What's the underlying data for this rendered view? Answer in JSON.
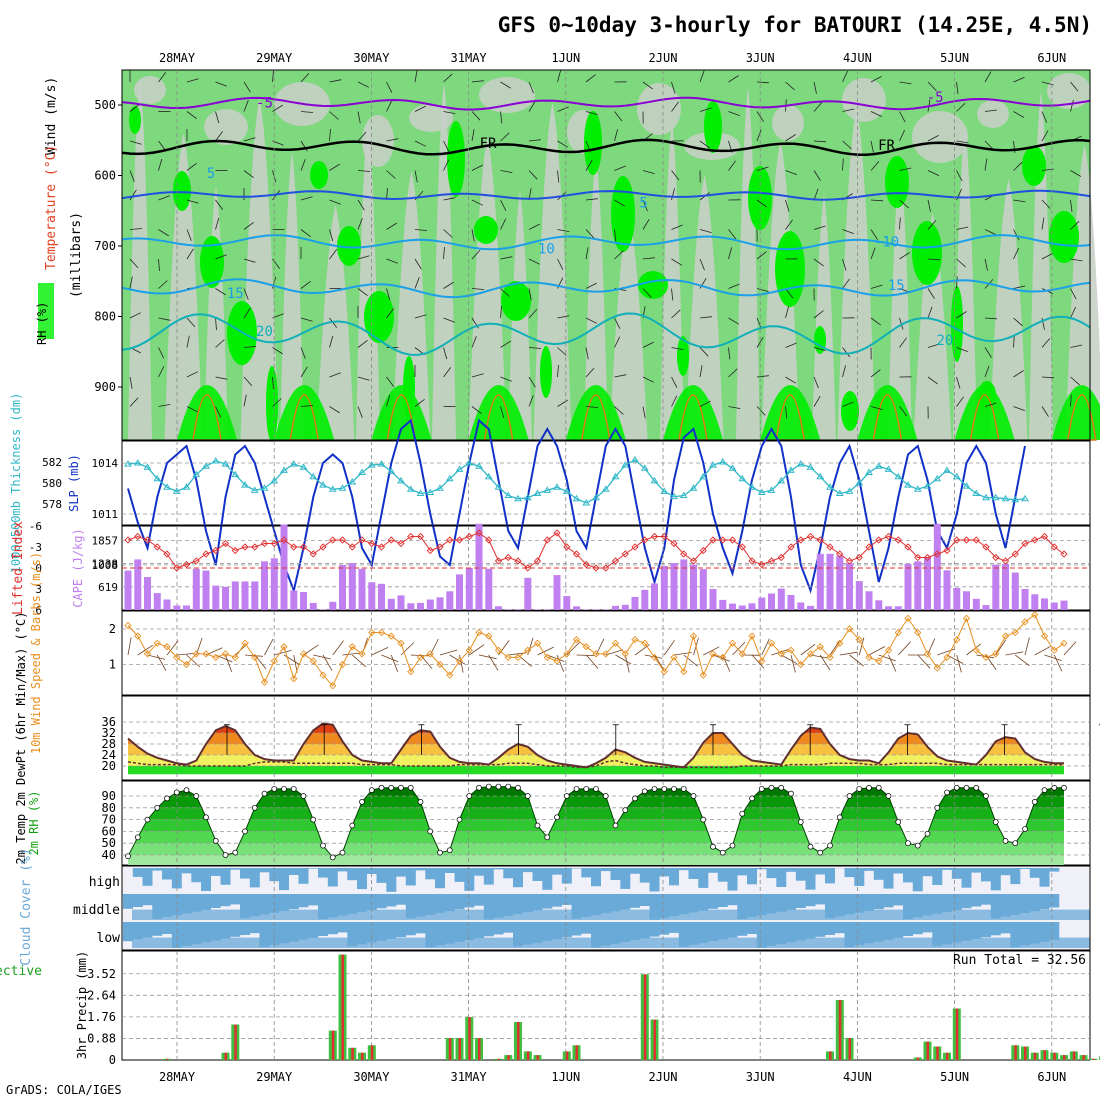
{
  "title": "GFS 0~10day 3-hourly for BATOURI (14.25E, 4.5N)",
  "footer": "GrADS: COLA/IGES",
  "date_labels": [
    "28MAY",
    "29MAY",
    "30MAY",
    "31MAY",
    "1JUN",
    "2JUN",
    "3JUN",
    "4JUN",
    "5JUN",
    "6JUN"
  ],
  "colors": {
    "rh_green_light": "#7ed87e",
    "rh_green_bright": "#00ee00",
    "rh_gray": "#c8d0c8",
    "wind_purple": "#8a00d4",
    "temp_blue": "#2050e0",
    "temp_lightblue": "#1aa0e8",
    "temp_teal": "#10b0b8",
    "slp_blue": "#1030c8",
    "thickness_cyan": "#30b8c8",
    "lifted_red": "#e03030",
    "cape_purple": "#c080f0",
    "wind10_orange": "#e89020",
    "temp_dark": "#603030",
    "cloud_blue": "#6aaad8",
    "precip_green": "#40c040",
    "precip_red": "#e03030"
  },
  "chart_data": [
    {
      "panel": "upper-air",
      "type": "heatmap",
      "ylabel_units": "(millibars)",
      "ylabel_parts": [
        "Wind (m/s)",
        "Temperature (°C)",
        "RH (%)"
      ],
      "y_ticks": [
        500,
        600,
        700,
        800,
        900
      ],
      "contour_labels": [
        {
          "text": "-5",
          "level_mb": 498,
          "day": 0.9
        },
        {
          "text": "-5",
          "level_mb": 490,
          "day": 7.8
        },
        {
          "text": "FR",
          "level_mb": 555,
          "day": 3.2
        },
        {
          "text": "FR",
          "level_mb": 558,
          "day": 7.3
        },
        {
          "text": "5",
          "level_mb": 598,
          "day": 0.35
        },
        {
          "text": "5",
          "level_mb": 640,
          "day": 4.8
        },
        {
          "text": "10",
          "level_mb": 705,
          "day": 3.8
        },
        {
          "text": "-10",
          "level_mb": 695,
          "day": 7.3
        },
        {
          "text": "15",
          "level_mb": 768,
          "day": 0.6
        },
        {
          "text": "15",
          "level_mb": 757,
          "day": 7.4
        },
        {
          "text": "20",
          "level_mb": 822,
          "day": 0.9
        },
        {
          "text": "20",
          "level_mb": 835,
          "day": 7.9
        }
      ]
    },
    {
      "panel": "slp-thickness",
      "type": "line",
      "ylabel_left": "1000~500mb Thickness (dm)",
      "ylabel_right": "SLP (mb)",
      "left_ticks": [
        582,
        580,
        578
      ],
      "right_ticks": [
        1014,
        1011,
        1008
      ],
      "series": [
        {
          "name": "SLP",
          "unit": "mb",
          "values": [
            1012.5,
            1010.5,
            1009,
            1012,
            1014,
            1014.5,
            1015,
            1013,
            1010,
            1008,
            1012,
            1014.5,
            1015,
            1014,
            1012,
            1010,
            1008,
            1006.5,
            1009,
            1012,
            1014,
            1014.5,
            1014,
            1012,
            1009,
            1008,
            1011,
            1014,
            1016,
            1016.5,
            1014,
            1011,
            1008.5,
            1008,
            1011,
            1014,
            1016.5,
            1016,
            1013,
            1010,
            1009,
            1012,
            1015,
            1016,
            1015,
            1013,
            1010,
            1009,
            1012,
            1015,
            1016,
            1015,
            1012,
            1009,
            1007,
            1009,
            1013,
            1015.5,
            1016,
            1014,
            1011,
            1009,
            1007.5,
            1010,
            1013,
            1015,
            1016,
            1015,
            1012,
            1008,
            1006.5,
            1009,
            1012,
            1014,
            1015,
            1013,
            1010,
            1007,
            1009,
            1012,
            1014.5,
            1015,
            1013,
            1010,
            1009,
            1011,
            1014,
            1015,
            1014,
            1011,
            1009,
            1012,
            1015
          ]
        },
        {
          "name": "Thickness",
          "unit": "dm",
          "values": [
            581.8,
            581.9,
            581.5,
            580.4,
            579.6,
            579.2,
            579.6,
            580.8,
            581.6,
            582.1,
            581.8,
            580.8,
            579.8,
            579.3,
            579.5,
            580.2,
            581.2,
            581.8,
            581.5,
            580.6,
            579.8,
            579.4,
            579.5,
            580.1,
            581,
            581.7,
            581.8,
            581.1,
            580.2,
            579.4,
            579,
            579.1,
            579.5,
            580.4,
            581.3,
            581.9,
            581.6,
            580.6,
            579.6,
            578.8,
            578.5,
            578.6,
            579,
            579.3,
            579.6,
            579.2,
            578.5,
            578.1,
            578.6,
            579.4,
            580.6,
            581.7,
            582.2,
            581.4,
            580.2,
            579.2,
            578.7,
            578.8,
            579.5,
            580.6,
            581.7,
            582,
            581.4,
            580.4,
            579.6,
            579.1,
            579.3,
            580.2,
            581.2,
            581.8,
            581.5,
            580.6,
            579.6,
            579,
            579.2,
            580,
            581,
            581.6,
            581.3,
            580.6,
            579.8,
            579.4,
            579.7,
            580.4,
            581.2,
            580.6,
            579.7,
            579,
            578.6,
            578.6,
            578.5,
            578.4,
            578.5
          ]
        }
      ]
    },
    {
      "panel": "cape-li",
      "type": "bar",
      "ylabel_left": "Lifted Index",
      "ylabel_right": "CAPE (J/kg)",
      "li_ticks": [
        -6,
        -3,
        0,
        3,
        6
      ],
      "cape_ticks": [
        619,
        1238,
        1857
      ],
      "series": [
        {
          "name": "CAPE",
          "unit": "J/kg",
          "values": [
            1050,
            1350,
            880,
            450,
            280,
            120,
            120,
            1100,
            1050,
            650,
            620,
            760,
            760,
            760,
            1300,
            1380,
            2280,
            520,
            480,
            190,
            15,
            220,
            1200,
            1250,
            1100,
            740,
            700,
            300,
            390,
            180,
            190,
            280,
            340,
            500,
            950,
            1120,
            2300,
            1100,
            100,
            15,
            20,
            860,
            15,
            20,
            930,
            370,
            100,
            15,
            15,
            15,
            110,
            140,
            350,
            540,
            710,
            1170,
            1250,
            1350,
            1210,
            1090,
            560,
            270,
            170,
            120,
            180,
            330,
            440,
            570,
            400,
            200,
            110,
            1500,
            1500,
            1450,
            1250,
            770,
            500,
            260,
            100,
            100,
            1230,
            1300,
            1400,
            2300,
            1060,
            590,
            500,
            300,
            130,
            1210,
            1230,
            1000,
            560,
            420,
            310,
            200,
            250
          ]
        },
        {
          "name": "Lifted Index",
          "unit": "K",
          "values": [
            -4,
            -4.5,
            -4,
            -3,
            -2,
            0,
            -0.5,
            -1,
            -2,
            -2.5,
            -3.5,
            -2.5,
            -3,
            -3,
            -3.5,
            -3.5,
            -4,
            -3,
            -3,
            -2,
            -3,
            -4,
            -4,
            -3,
            -4,
            -3.5,
            -3,
            -4,
            -3.5,
            -4.5,
            -4.5,
            -2.5,
            -3,
            -4,
            -4,
            -4.5,
            -5,
            -4,
            -1,
            -1.5,
            -1,
            0,
            -1,
            -4,
            -5,
            -3,
            -2,
            -0.5,
            0,
            0,
            -1,
            -2,
            -3,
            -4,
            -4.5,
            -4.5,
            -3.5,
            -2,
            -1,
            -2.5,
            -4,
            -4,
            -4,
            -3,
            -1,
            -0.5,
            -1,
            -1.5,
            -3,
            -4,
            -4.5,
            -4,
            -3,
            -2,
            -1,
            -1.5,
            -3,
            -4,
            -4.5,
            -4,
            -3,
            -1.5,
            -1.5,
            -2,
            -2.5,
            -4,
            -4,
            -4,
            -3,
            -1.5,
            -1,
            -2,
            -3.5,
            -4,
            -4.5,
            -3,
            -2
          ]
        }
      ]
    },
    {
      "panel": "wind10m",
      "type": "line",
      "ylabel": "10m Wind Speed & Barbs (m/s)",
      "y_ticks": [
        1,
        2
      ],
      "series": [
        {
          "name": "10m Wind Speed",
          "unit": "m/s",
          "values": [
            2.1,
            1.8,
            1.3,
            1.6,
            1.5,
            1.2,
            1.0,
            1.3,
            1.3,
            1.2,
            1.3,
            1.2,
            1.6,
            1.2,
            0.5,
            1.1,
            1.5,
            0.6,
            1.3,
            1.1,
            0.7,
            0.4,
            1.0,
            1.5,
            1.3,
            1.9,
            1.9,
            1.8,
            1.6,
            0.8,
            1.2,
            1.3,
            1.0,
            0.7,
            1.1,
            1.4,
            1.9,
            1.8,
            1.4,
            1.2,
            1.2,
            1.4,
            1.6,
            1.2,
            1.1,
            1.3,
            1.7,
            1.5,
            1.3,
            1.3,
            1.6,
            1.3,
            1.7,
            1.6,
            1.2,
            0.8,
            1.2,
            0.8,
            1.8,
            0.7,
            1.3,
            1.2,
            1.6,
            1.3,
            1.8,
            1.1,
            1.6,
            1.3,
            1.4,
            1.0,
            1.3,
            1.5,
            1.2,
            1.6,
            2.0,
            1.7,
            1.2,
            1.1,
            1.4,
            1.9,
            2.3,
            1.9,
            1.3,
            0.9,
            1.2,
            1.7,
            2.3,
            1.4,
            1.2,
            1.3,
            1.8,
            1.9,
            2.2,
            2.4,
            1.8,
            1.4,
            1.6
          ]
        }
      ]
    },
    {
      "panel": "temp2m",
      "type": "area",
      "ylabel": "2m Temp 2m DewPt (6hr Min/Max) (°C)",
      "y_ticks": [
        20,
        24,
        28,
        32,
        36
      ],
      "series": [
        {
          "name": "2m Temp",
          "unit": "°C",
          "values": [
            30,
            27,
            24.5,
            23,
            22,
            21,
            20.5,
            22,
            28,
            33,
            34.5,
            33,
            28,
            24,
            22.5,
            22,
            22,
            22,
            28,
            33,
            35.5,
            35,
            29,
            24,
            22,
            21.5,
            21,
            21,
            26,
            31,
            33,
            32.5,
            27,
            23,
            21.5,
            21,
            21,
            20.5,
            23,
            26,
            28,
            27,
            24,
            22,
            21,
            20.5,
            20,
            19.5,
            21,
            23,
            26,
            25,
            23,
            21.5,
            21,
            20.5,
            20,
            19.5,
            23,
            28.5,
            32,
            32,
            28,
            24,
            22,
            21.5,
            21,
            20.5,
            26,
            31,
            34,
            33.5,
            28,
            24,
            22.5,
            22,
            22,
            21,
            25,
            30,
            32,
            31.5,
            27,
            23.5,
            22,
            21.5,
            21,
            20.5,
            24,
            29,
            30.5,
            30,
            25,
            22.5,
            21.5,
            21,
            21
          ]
        },
        {
          "name": "2m DewPt",
          "unit": "°C",
          "values": [
            21.5,
            21,
            20.5,
            20.5,
            20.5,
            20.5,
            20,
            20,
            20,
            20,
            20,
            20,
            20,
            21,
            21.5,
            21.5,
            21.5,
            21,
            21,
            21,
            21,
            21,
            21,
            21,
            20.5,
            20.5,
            20.5,
            20.5,
            20,
            20,
            20,
            20,
            20,
            20,
            20.5,
            20.5,
            20.5,
            20.5,
            20.5,
            21,
            21,
            21,
            20.5,
            20,
            20,
            20,
            19.5,
            19.5,
            20,
            21.5,
            22,
            21,
            20.5,
            20,
            20,
            19.5,
            19.5,
            19.5,
            19.5,
            19.5,
            19.5,
            19.5,
            19.5,
            20,
            20,
            20,
            20,
            20,
            20.5,
            20.5,
            20.5,
            20.5,
            21,
            21,
            21,
            21,
            20.5,
            20.5,
            20.5,
            21,
            21,
            21,
            21,
            21,
            20.5,
            20.5,
            20.5,
            20.5,
            20.5,
            20.5,
            20.5,
            20.5,
            20.5,
            20.5,
            20.5,
            20.5,
            20.5
          ]
        }
      ]
    },
    {
      "panel": "rh2m",
      "type": "area",
      "ylabel": "2m RH (%)",
      "y_ticks": [
        40,
        50,
        60,
        70,
        80,
        90
      ],
      "series": [
        {
          "name": "2m RH",
          "unit": "%",
          "values": [
            39,
            55,
            70,
            80,
            88,
            93,
            95,
            90,
            72,
            52,
            40,
            42,
            60,
            80,
            92,
            96,
            96,
            96,
            90,
            70,
            48,
            38,
            42,
            65,
            85,
            95,
            97,
            97,
            97,
            97,
            85,
            60,
            42,
            44,
            70,
            90,
            97,
            98,
            98,
            98,
            97,
            90,
            65,
            55,
            72,
            90,
            96,
            96,
            96,
            90,
            65,
            78,
            88,
            94,
            96,
            96,
            96,
            96,
            90,
            70,
            47,
            42,
            48,
            75,
            88,
            96,
            97,
            97,
            92,
            68,
            47,
            42,
            48,
            72,
            90,
            96,
            97,
            97,
            90,
            68,
            50,
            48,
            58,
            80,
            93,
            97,
            97,
            97,
            90,
            68,
            52,
            50,
            62,
            85,
            95,
            97,
            97
          ]
        }
      ]
    },
    {
      "panel": "cloud",
      "type": "area",
      "ylabel": "Cloud Cover (%)",
      "layer_labels": [
        "high",
        "middle",
        "low"
      ]
    },
    {
      "panel": "precip",
      "type": "bar",
      "ylabel_left": "Total / Rain Convective",
      "ylabel": "3hr Precip (mm)",
      "y_ticks": [
        0,
        0.88,
        1.76,
        2.64,
        3.52
      ],
      "run_total": "Run Total = 32.56",
      "series": [
        {
          "name": "Total",
          "unit": "mm",
          "values": [
            0,
            0,
            0,
            0,
            0.05,
            0,
            0,
            0,
            0,
            0,
            0.3,
            1.45,
            0,
            0,
            0,
            0,
            0,
            0,
            0,
            0,
            0,
            1.2,
            4.3,
            0.5,
            0.3,
            0.6,
            0,
            0,
            0,
            0,
            0,
            0,
            0,
            0.9,
            0.9,
            1.75,
            0.9,
            0,
            0.05,
            0.2,
            1.55,
            0.35,
            0.2,
            0,
            0,
            0.35,
            0.6,
            0,
            0,
            0,
            0,
            0,
            0,
            3.5,
            1.65,
            0,
            0,
            0,
            0,
            0,
            0,
            0,
            0,
            0,
            0,
            0,
            0,
            0,
            0,
            0,
            0,
            0,
            0.35,
            2.45,
            0.9,
            0,
            0,
            0,
            0,
            0,
            0,
            0.1,
            0.75,
            0.55,
            0.3,
            2.1,
            0,
            0,
            0,
            0,
            0,
            0.6,
            0.55,
            0.3,
            0.4,
            0.3,
            0.2,
            0.35,
            0.2,
            0.05,
            0.15,
            0.15,
            0,
            0.45,
            1.65
          ]
        }
      ]
    }
  ]
}
